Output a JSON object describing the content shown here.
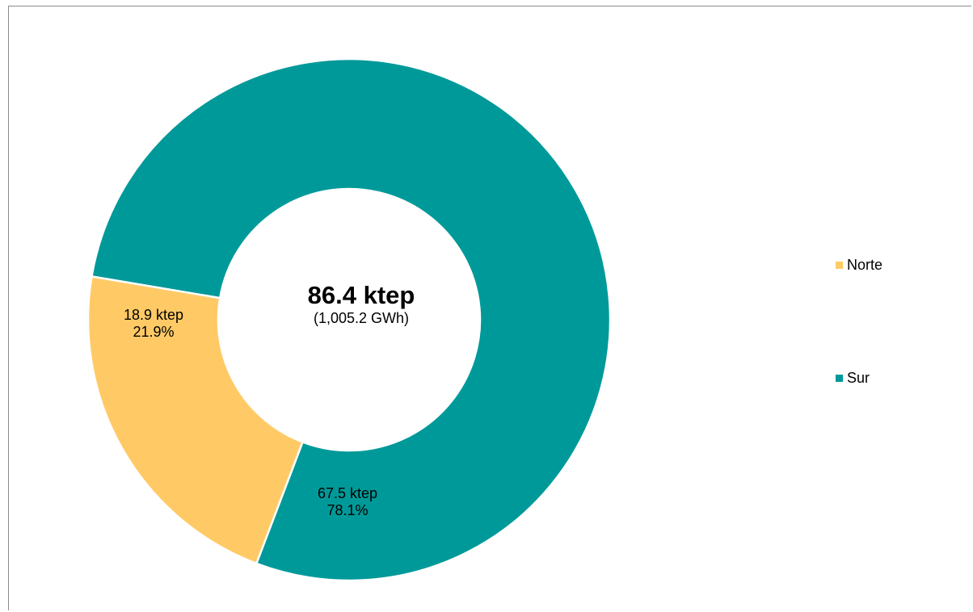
{
  "chart_data": {
    "type": "pie",
    "variant": "donut",
    "center": {
      "total": "86.4 ktep",
      "subtitle": "(1,005.2 GWh)"
    },
    "series": [
      {
        "name": "Norte",
        "value": 18.9,
        "value_label": "18.9 ktep",
        "percent_label": "21.9%",
        "color": "#FFCA66"
      },
      {
        "name": "Sur",
        "value": 67.5,
        "value_label": "67.5 ktep",
        "percent_label": "78.1%",
        "color": "#009999"
      }
    ],
    "legend": [
      "Norte",
      "Sur"
    ],
    "legend_position": "right"
  }
}
